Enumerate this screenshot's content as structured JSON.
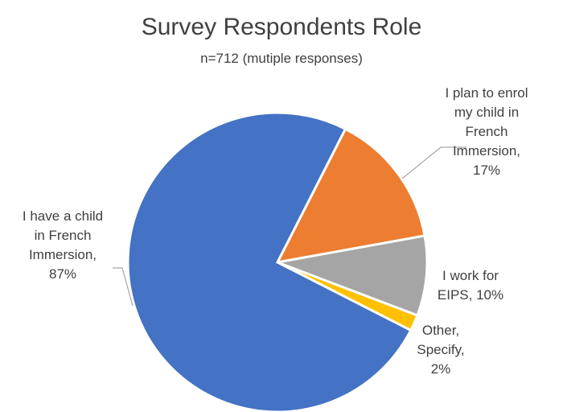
{
  "chart_data": {
    "type": "pie",
    "title": "Survey Respondents Role",
    "subtitle": "n=712 (mutiple responses)",
    "slices": [
      {
        "name": "I plan to enrol my child in French Immersion",
        "value": 17,
        "label": "17%",
        "color": "#ED7D31"
      },
      {
        "name": "I work for EIPS",
        "value": 10,
        "label": "10%",
        "color": "#A5A5A5"
      },
      {
        "name": "Other, Specify",
        "value": 2,
        "label": "2%",
        "color": "#FFC000"
      },
      {
        "name": "I have a child in French Immersion",
        "value": 87,
        "label": "87%",
        "color": "#4472C4"
      }
    ],
    "legend": "none"
  }
}
